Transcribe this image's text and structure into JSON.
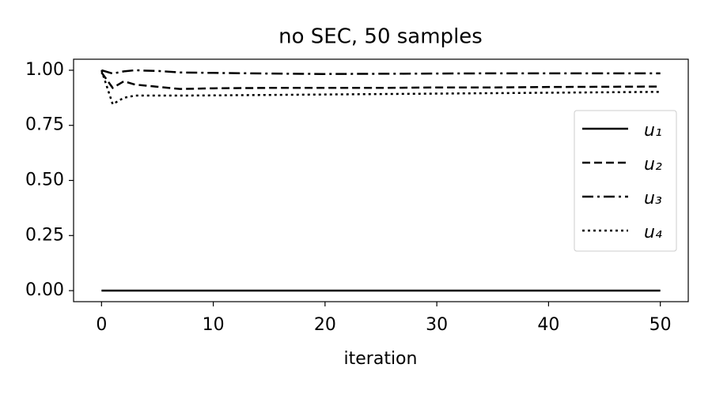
{
  "chart_data": {
    "type": "line",
    "title": "no SEC, 50 samples",
    "x_label": "iteration",
    "x": [
      0,
      1,
      2,
      3,
      4,
      5,
      7,
      10,
      15,
      20,
      25,
      30,
      35,
      40,
      45,
      50
    ],
    "series": [
      {
        "name": "u₁",
        "color": "#000000",
        "dash": "solid",
        "values": [
          0.0,
          0.0,
          0.0,
          0.0,
          0.0,
          0.0,
          0.0,
          0.0,
          0.0,
          0.0,
          0.0,
          0.0,
          0.0,
          0.0,
          0.0,
          0.0
        ]
      },
      {
        "name": "u₂",
        "color": "#000000",
        "dash": "dashed",
        "values": [
          0.99,
          0.92,
          0.95,
          0.935,
          0.93,
          0.925,
          0.915,
          0.918,
          0.92,
          0.92,
          0.92,
          0.922,
          0.922,
          0.924,
          0.925,
          0.926
        ]
      },
      {
        "name": "u₃",
        "color": "#000000",
        "dash": "dashdot",
        "values": [
          1.0,
          0.985,
          0.995,
          1.0,
          0.998,
          0.997,
          0.99,
          0.988,
          0.985,
          0.983,
          0.984,
          0.985,
          0.986,
          0.986,
          0.986,
          0.986
        ]
      },
      {
        "name": "u₄",
        "color": "#000000",
        "dash": "dotted",
        "values": [
          1.0,
          0.846,
          0.875,
          0.885,
          0.885,
          0.885,
          0.885,
          0.886,
          0.888,
          0.89,
          0.892,
          0.894,
          0.896,
          0.898,
          0.9,
          0.902
        ]
      }
    ],
    "xlim": [
      -2.5,
      52.5
    ],
    "ylim": [
      -0.05,
      1.05
    ],
    "xticks": [
      0,
      10,
      20,
      30,
      40,
      50
    ],
    "yticks": [
      {
        "value": 0,
        "label": "0.00"
      },
      {
        "value": 0.25,
        "label": "0.25"
      },
      {
        "value": 0.5,
        "label": "0.50"
      },
      {
        "value": 0.75,
        "label": "0.75"
      },
      {
        "value": 1,
        "label": "1.00"
      }
    ],
    "legend": "right"
  }
}
